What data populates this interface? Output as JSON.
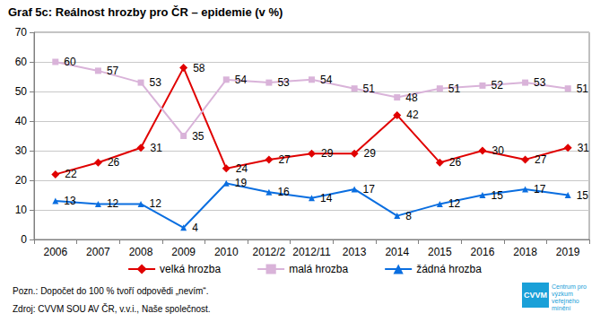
{
  "chart_data": {
    "type": "line",
    "title": "Graf 5c: Reálnost hrozby pro ČR – epidemie (v %)",
    "categories": [
      "2006",
      "2007",
      "2008",
      "2009",
      "2010",
      "2012/2",
      "2012/11",
      "2013",
      "2014",
      "2015",
      "2016",
      "2018",
      "2019"
    ],
    "series": [
      {
        "name": "velká hrozba",
        "color": "#e00000",
        "marker": "diamond",
        "values": [
          22,
          26,
          31,
          58,
          24,
          27,
          29,
          29,
          42,
          26,
          30,
          27,
          31
        ]
      },
      {
        "name": "malá hrozba",
        "color": "#d9b3d9",
        "marker": "square",
        "values": [
          60,
          57,
          53,
          35,
          54,
          53,
          54,
          51,
          48,
          51,
          52,
          53,
          51
        ]
      },
      {
        "name": "žádná hrozba",
        "color": "#0a6ee0",
        "marker": "triangle",
        "values": [
          13,
          12,
          12,
          4,
          19,
          16,
          14,
          17,
          8,
          12,
          15,
          17,
          15
        ]
      }
    ],
    "ylim": [
      0,
      70
    ],
    "yticks": [
      0,
      10,
      20,
      30,
      40,
      50,
      60,
      70
    ],
    "grid": true,
    "legend": "bottom",
    "data_labels": true,
    "notes": [
      "Pozn.: Dopočet do 100 % tvoří odpovědi „nevím“.",
      "Zdroj: CVVM SOU AV ČR, v.v.i., Naše společnost."
    ],
    "logo": {
      "short": "CVVM",
      "text": "Centrum pro výzkum veřejného mínění"
    }
  }
}
